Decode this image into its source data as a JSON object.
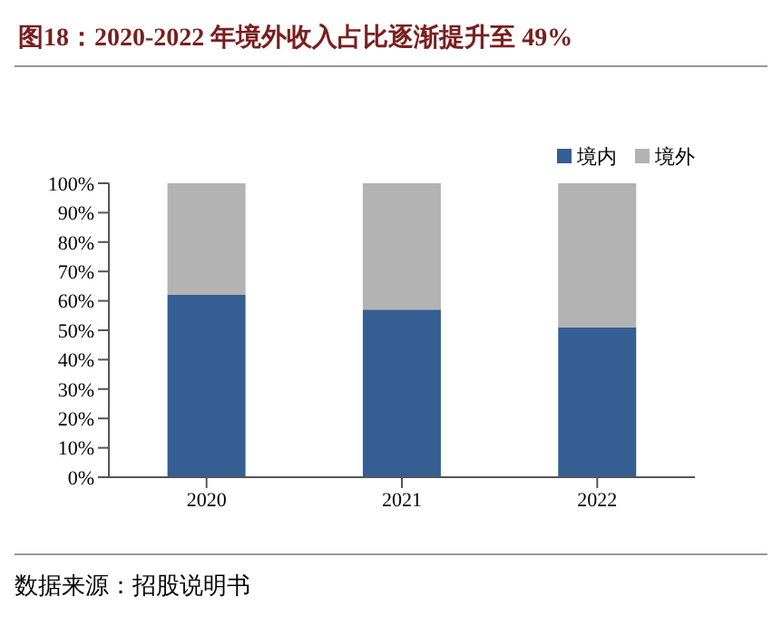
{
  "chart_data": {
    "type": "bar",
    "title": "图18：2020-2022 年境外收入占比逐渐提升至 49%",
    "categories": [
      "2020",
      "2021",
      "2022"
    ],
    "series": [
      {
        "name": "境内",
        "color": "#355e93",
        "values": [
          62,
          57,
          51
        ]
      },
      {
        "name": "境外",
        "color": "#b3b3b3",
        "values": [
          38,
          43,
          49
        ]
      }
    ],
    "stacked": true,
    "ylim": [
      0,
      100
    ],
    "yticks": [
      {
        "value": 0,
        "label": "0%"
      },
      {
        "value": 10,
        "label": "10%"
      },
      {
        "value": 20,
        "label": "20%"
      },
      {
        "value": 30,
        "label": "30%"
      },
      {
        "value": 40,
        "label": "40%"
      },
      {
        "value": 50,
        "label": "50%"
      },
      {
        "value": 60,
        "label": "60%"
      },
      {
        "value": 70,
        "label": "70%"
      },
      {
        "value": 80,
        "label": "80%"
      },
      {
        "value": 90,
        "label": "90%"
      },
      {
        "value": 100,
        "label": "100%"
      }
    ],
    "legend": "top right",
    "grid": false,
    "annotations": [
      "数据来源：招股说明书"
    ]
  }
}
